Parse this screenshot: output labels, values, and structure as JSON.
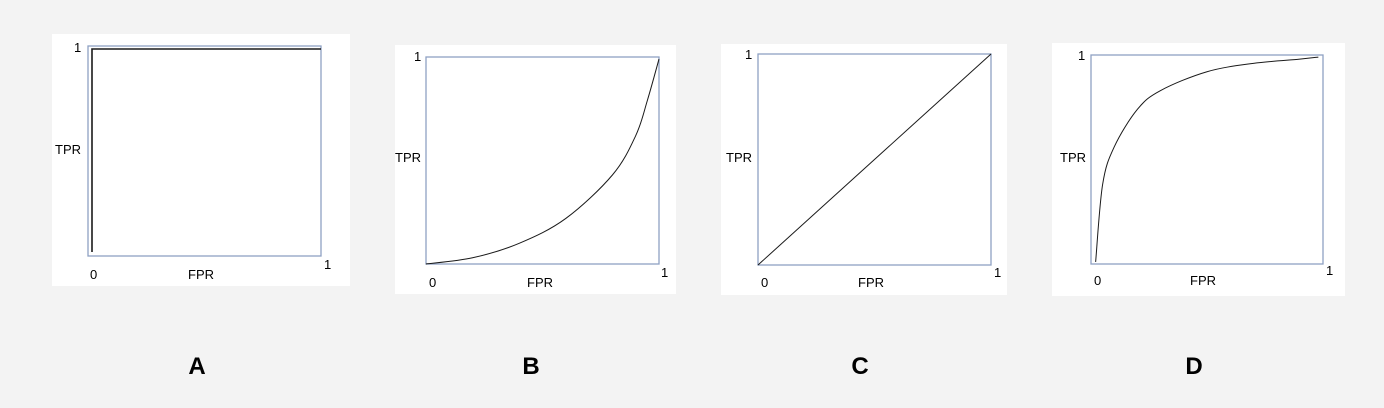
{
  "chart_data": [
    {
      "type": "line",
      "panel_label": "A",
      "xlabel": "FPR",
      "ylabel": "TPR",
      "x_min_label": "0",
      "x_max_label": "1",
      "y_max_label": "1",
      "xlim": [
        0,
        1
      ],
      "ylim": [
        0,
        1
      ],
      "series": [
        {
          "x": [
            0,
            0,
            1
          ],
          "y": [
            0,
            1,
            1
          ]
        }
      ]
    },
    {
      "type": "line",
      "panel_label": "B",
      "xlabel": "FPR",
      "ylabel": "TPR",
      "x_min_label": "0",
      "x_max_label": "1",
      "y_max_label": "1",
      "xlim": [
        0,
        1
      ],
      "ylim": [
        0,
        1
      ],
      "series": [
        {
          "x": [
            0,
            0.2,
            0.4,
            0.6,
            0.8,
            0.9,
            0.95,
            1
          ],
          "y": [
            0,
            0.03,
            0.1,
            0.22,
            0.43,
            0.62,
            0.79,
            0.99
          ]
        }
      ]
    },
    {
      "type": "line",
      "panel_label": "C",
      "xlabel": "FPR",
      "ylabel": "TPR",
      "x_min_label": "0",
      "x_max_label": "1",
      "y_max_label": "1",
      "xlim": [
        0,
        1
      ],
      "ylim": [
        0,
        1
      ],
      "series": [
        {
          "x": [
            0,
            1
          ],
          "y": [
            0,
            1
          ]
        }
      ]
    },
    {
      "type": "line",
      "panel_label": "D",
      "xlabel": "FPR",
      "ylabel": "TPR",
      "x_min_label": "0",
      "x_max_label": "1",
      "y_max_label": "1",
      "xlim": [
        0,
        1
      ],
      "ylim": [
        0,
        1
      ],
      "series": [
        {
          "x": [
            0.02,
            0.05,
            0.1,
            0.2,
            0.3,
            0.5,
            0.7,
            0.9,
            0.98
          ],
          "y": [
            0.01,
            0.38,
            0.56,
            0.74,
            0.83,
            0.92,
            0.96,
            0.98,
            0.99
          ]
        }
      ]
    }
  ],
  "colors": {
    "background": "#f3f3f3",
    "panel": "#ffffff",
    "frame": "#8ea1c4",
    "curve": "#1a1a1a"
  }
}
